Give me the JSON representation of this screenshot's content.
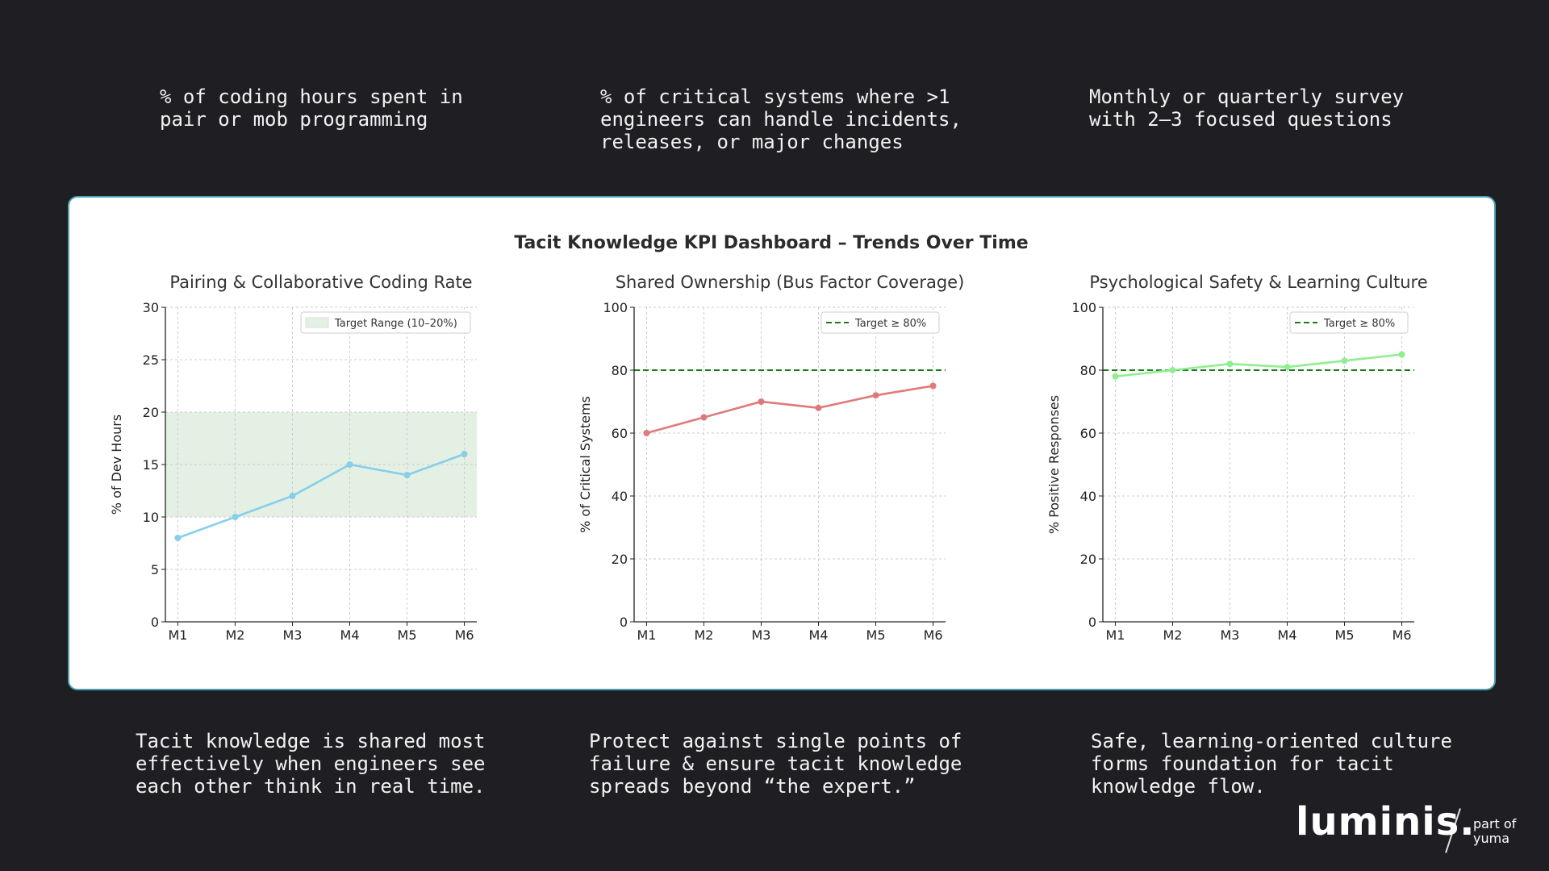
{
  "top_captions": [
    "% of coding hours spent in\npair or mob programming",
    "% of critical systems where >1\nengineers can handle incidents,\nreleases, or major changes",
    "Monthly or quarterly survey\nwith 2–3 focused questions"
  ],
  "bottom_captions": [
    "Tacit knowledge is shared most\neffectively when engineers see\neach other think in real time.",
    "Protect against single points of\nfailure & ensure tacit knowledge\nspreads beyond “the expert.”",
    "Safe, learning-oriented culture\nforms foundation for tacit\nknowledge flow."
  ],
  "dashboard_title": "Tacit Knowledge KPI Dashboard – Trends Over Time",
  "brand": {
    "name": "luminis.",
    "part_of": "part of\nyuma"
  },
  "chart_data": [
    {
      "type": "line",
      "title": "Pairing & Collaborative Coding Rate",
      "xlabel": "",
      "ylabel": "% of Dev Hours",
      "categories": [
        "M1",
        "M2",
        "M3",
        "M4",
        "M5",
        "M6"
      ],
      "values": [
        8,
        10,
        12,
        15,
        14,
        16
      ],
      "color": "#87CEEB",
      "ylim": [
        0,
        30
      ],
      "yticks": [
        0,
        5,
        10,
        15,
        20,
        25,
        30
      ],
      "target_band": [
        10,
        20
      ],
      "band_color": "#e3f0e3",
      "legend": "Target Range (10–20%)",
      "legend_type": "band",
      "grid": true
    },
    {
      "type": "line",
      "title": "Shared Ownership (Bus Factor Coverage)",
      "xlabel": "",
      "ylabel": "% of Critical Systems",
      "categories": [
        "M1",
        "M2",
        "M3",
        "M4",
        "M5",
        "M6"
      ],
      "values": [
        60,
        65,
        70,
        68,
        72,
        75
      ],
      "color": "#E07A7A",
      "ylim": [
        0,
        100
      ],
      "yticks": [
        0,
        20,
        40,
        60,
        80,
        100
      ],
      "target_line": 80,
      "target_color": "#1a7a1a",
      "legend": "Target ≥ 80%",
      "legend_type": "line",
      "grid": true
    },
    {
      "type": "line",
      "title": "Psychological Safety & Learning Culture",
      "xlabel": "",
      "ylabel": "% Positive Responses",
      "categories": [
        "M1",
        "M2",
        "M3",
        "M4",
        "M5",
        "M6"
      ],
      "values": [
        78,
        80,
        82,
        81,
        83,
        85
      ],
      "color": "#90EE90",
      "ylim": [
        0,
        100
      ],
      "yticks": [
        0,
        20,
        40,
        60,
        80,
        100
      ],
      "target_line": 80,
      "target_color": "#1a7a1a",
      "legend": "Target ≥ 80%",
      "legend_type": "line",
      "grid": true
    }
  ]
}
